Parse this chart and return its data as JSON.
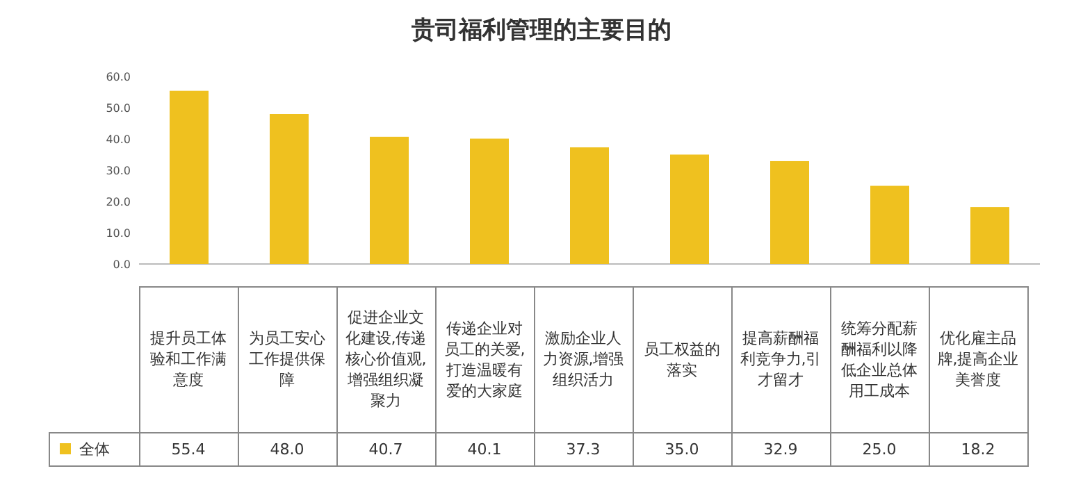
{
  "chart_data": {
    "type": "bar",
    "title": "贵司福利管理的主要目的",
    "categories": [
      "提升员工体验和工作满意度",
      "为员工安心工作提供保障",
      "促进企业文化建设,传递核心价值观,增强组织凝聚力",
      "传递企业对员工的关爱,打造温暖有爱的大家庭",
      "激励企业人力资源,增强组织活力",
      "员工权益的落实",
      "提高薪酬福利竞争力,引才留才",
      "统筹分配薪酬福利以降低企业总体用工成本",
      "优化雇主品牌,提高企业美誉度"
    ],
    "series": [
      {
        "name": "全体",
        "color": "#efc11f",
        "values": [
          55.4,
          48.0,
          40.7,
          40.1,
          37.3,
          35.0,
          32.9,
          25.0,
          18.2
        ],
        "value_labels": [
          "55.4",
          "48.0",
          "40.7",
          "40.1",
          "37.3",
          "35.0",
          "32.9",
          "25.0",
          "18.2"
        ]
      }
    ],
    "ylim": [
      0,
      60
    ],
    "yticks": [
      {
        "value": 0,
        "label": "0.0"
      },
      {
        "value": 10,
        "label": "10.0"
      },
      {
        "value": 20,
        "label": "20.0"
      },
      {
        "value": 30,
        "label": "30.0"
      },
      {
        "value": 40,
        "label": "40.0"
      },
      {
        "value": 50,
        "label": "50.0"
      },
      {
        "value": 60,
        "label": "60.0"
      }
    ],
    "grid": false
  }
}
